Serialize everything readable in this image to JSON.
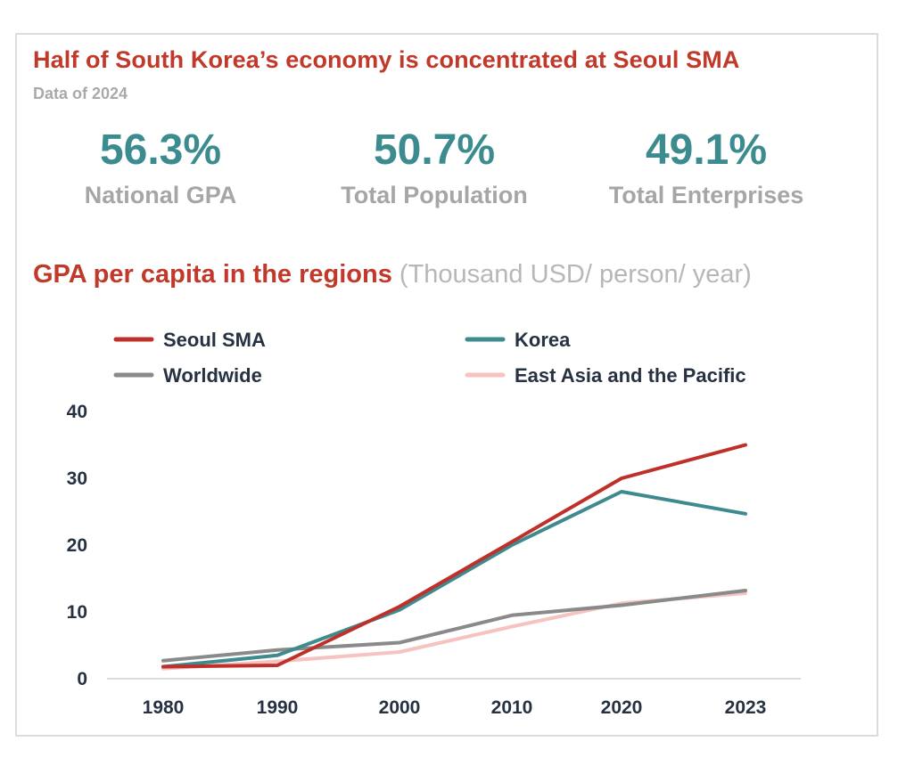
{
  "header": {
    "title": "Half of South Korea’s economy is concentrated at Seoul SMA",
    "subtitle": "Data of 2024"
  },
  "stats": [
    {
      "value": "56.3%",
      "label": "National GPA"
    },
    {
      "value": "50.7%",
      "label": "Total Population"
    },
    {
      "value": "49.1%",
      "label": "Total Enterprises"
    }
  ],
  "section": {
    "title": "GPA per capita in the regions",
    "unit": "(Thousand USD/ person/ year)"
  },
  "chart_data": {
    "type": "line",
    "x": [
      "1980",
      "1990",
      "2000",
      "2010",
      "2020",
      "2023"
    ],
    "ylim": [
      0,
      40
    ],
    "yticks": [
      0,
      10,
      20,
      30,
      40
    ],
    "grid": false,
    "legend": "top",
    "series": [
      {
        "name": "Seoul SMA",
        "color": "#c0302b",
        "values": [
          1.8,
          2.0,
          10.8,
          20.5,
          30.0,
          35.0
        ]
      },
      {
        "name": "Korea",
        "color": "#3d8a8f",
        "values": [
          1.8,
          3.5,
          10.3,
          20.0,
          28.0,
          24.7
        ]
      },
      {
        "name": "Worldwide",
        "color": "#8a8a8a",
        "values": [
          2.7,
          4.3,
          5.4,
          9.5,
          11.0,
          13.2
        ]
      },
      {
        "name": "East Asia and the Pacific",
        "color": "#f6c3c0",
        "values": [
          1.5,
          2.6,
          4.0,
          7.8,
          11.3,
          12.8
        ]
      }
    ]
  }
}
